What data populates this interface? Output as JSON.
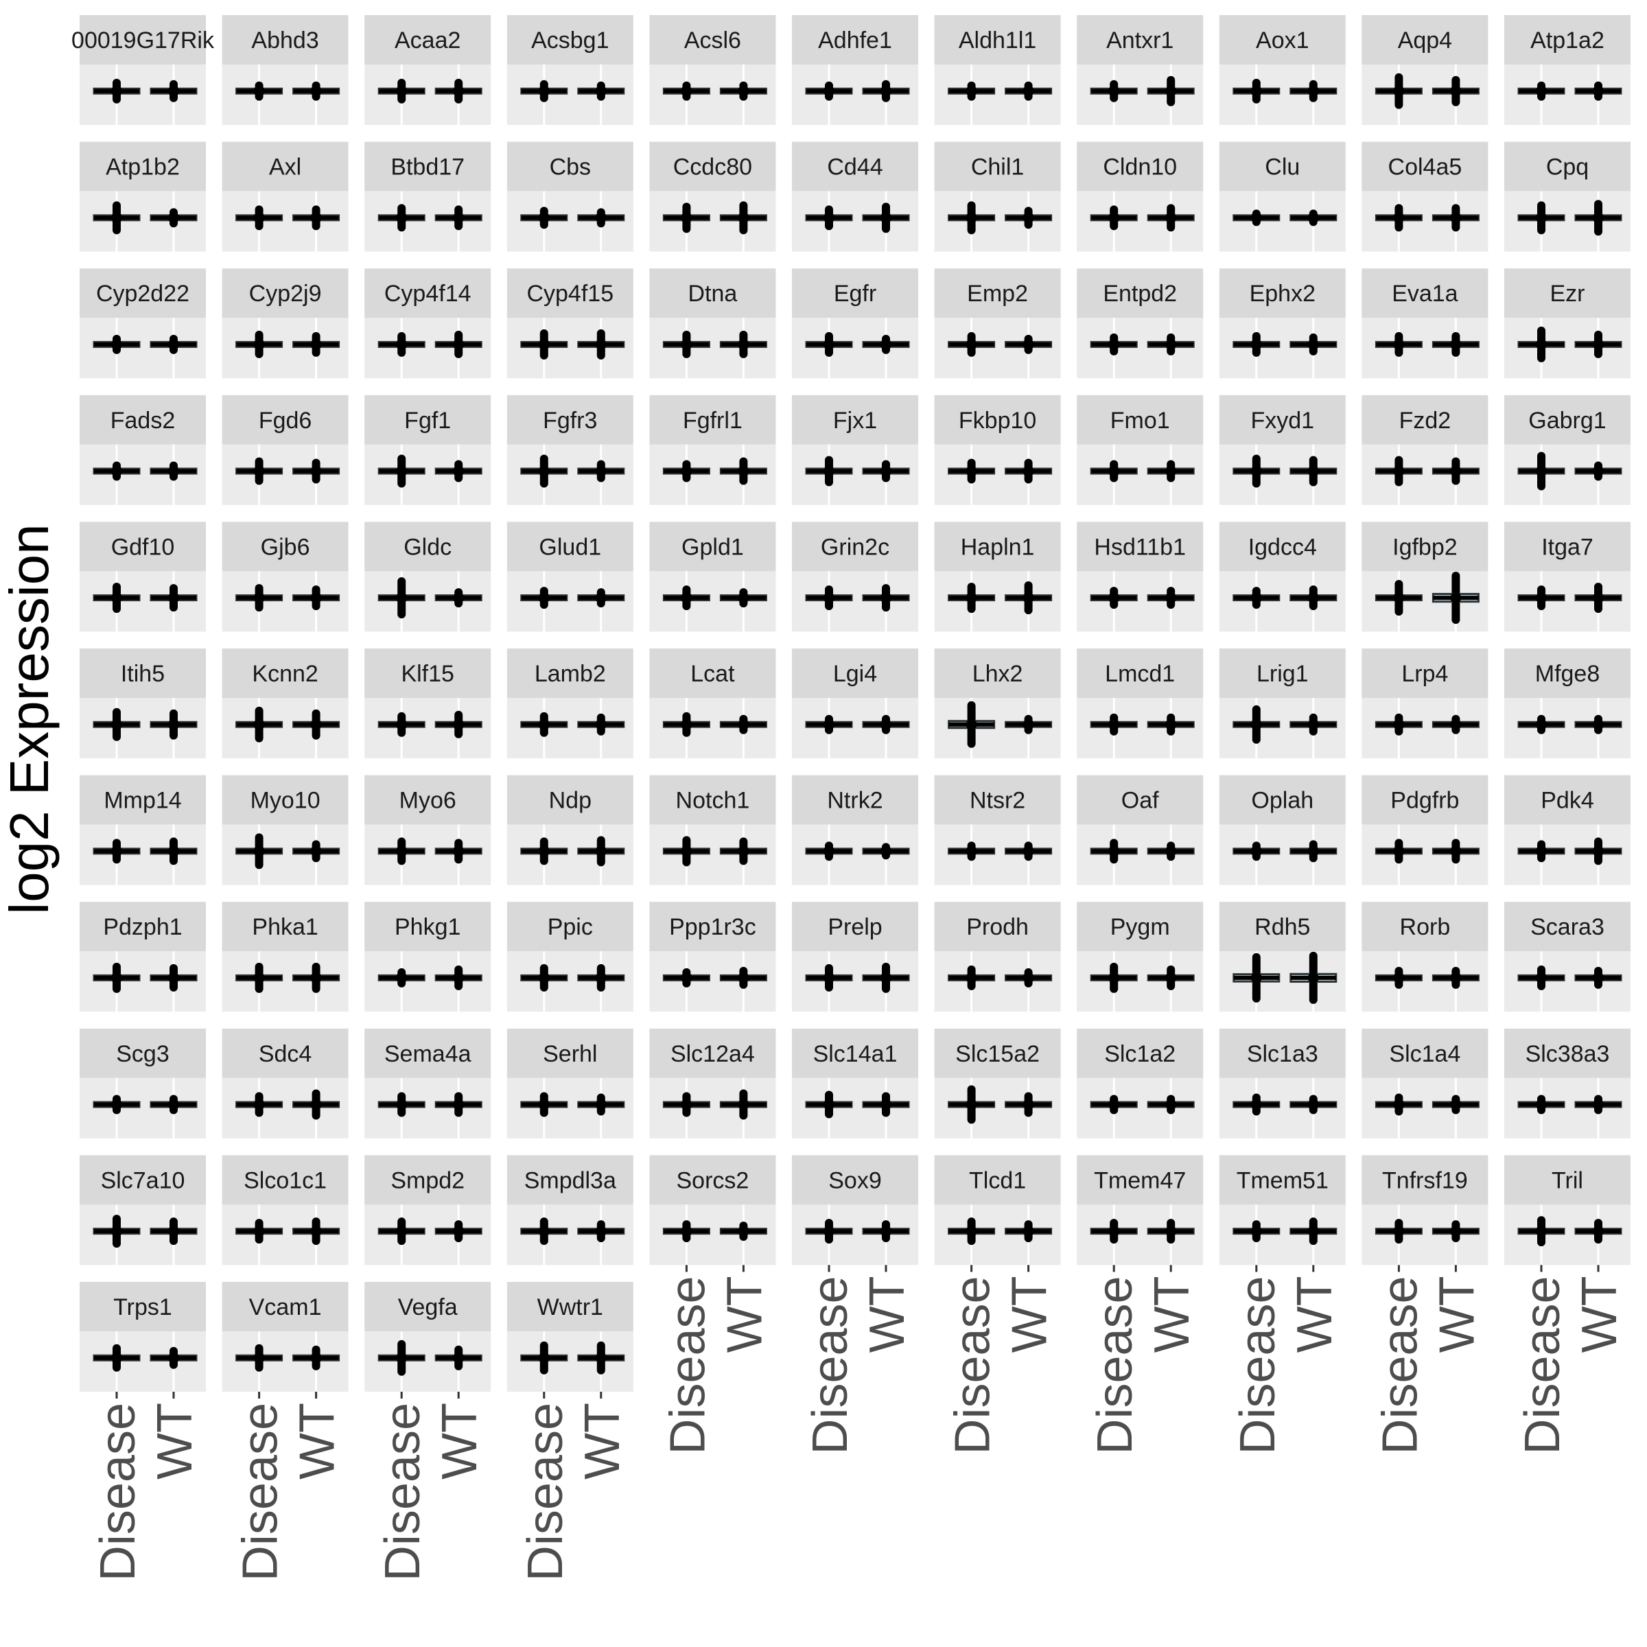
{
  "chart_data": {
    "type": "box",
    "ylabel": "log2 Expression",
    "x_categories": [
      "Disease",
      "WT"
    ],
    "facet_columns": 11,
    "facets": [
      "00019G17Rik",
      "Abhd3",
      "Acaa2",
      "Acsbg1",
      "Acsl6",
      "Adhfe1",
      "Aldh1l1",
      "Antxr1",
      "Aox1",
      "Aqp4",
      "Atp1a2",
      "Atp1b2",
      "Axl",
      "Btbd17",
      "Cbs",
      "Ccdc80",
      "Cd44",
      "Chil1",
      "Cldn10",
      "Clu",
      "Col4a5",
      "Cpq",
      "Cyp2d22",
      "Cyp2j9",
      "Cyp4f14",
      "Cyp4f15",
      "Dtna",
      "Egfr",
      "Emp2",
      "Entpd2",
      "Ephx2",
      "Eva1a",
      "Ezr",
      "Fads2",
      "Fgd6",
      "Fgf1",
      "Fgfr3",
      "Fgfrl1",
      "Fjx1",
      "Fkbp10",
      "Fmo1",
      "Fxyd1",
      "Fzd2",
      "Gabrg1",
      "Gdf10",
      "Gjb6",
      "Gldc",
      "Glud1",
      "Gpld1",
      "Grin2c",
      "Hapln1",
      "Hsd11b1",
      "Igdcc4",
      "Igfbp2",
      "Itga7",
      "Itih5",
      "Kcnn2",
      "Klf15",
      "Lamb2",
      "Lcat",
      "Lgi4",
      "Lhx2",
      "Lmcd1",
      "Lrig1",
      "Lrp4",
      "Mfge8",
      "Mmp14",
      "Myo10",
      "Myo6",
      "Ndp",
      "Notch1",
      "Ntrk2",
      "Ntsr2",
      "Oaf",
      "Oplah",
      "Pdgfrb",
      "Pdk4",
      "Pdzph1",
      "Phka1",
      "Phkg1",
      "Ppic",
      "Ppp1r3c",
      "Prelp",
      "Prodh",
      "Pygm",
      "Rdh5",
      "Rorb",
      "Scara3",
      "Scg3",
      "Sdc4",
      "Sema4a",
      "Serhl",
      "Slc12a4",
      "Slc14a1",
      "Slc15a2",
      "Slc1a2",
      "Slc1a3",
      "Slc1a4",
      "Slc38a3",
      "Slc7a10",
      "Slco1c1",
      "Smpd2",
      "Smpdl3a",
      "Sorcs2",
      "Sox9",
      "Tlcd1",
      "Tmem47",
      "Tmem51",
      "Tnfrsf19",
      "Tril",
      "Trps1",
      "Vcam1",
      "Vegfa",
      "Wwtr1"
    ],
    "spread": {
      "00019G17Rik": [
        0.6,
        0.5
      ],
      "Abhd3": [
        0.4,
        0.4
      ],
      "Acaa2": [
        0.6,
        0.6
      ],
      "Acsbg1": [
        0.5,
        0.4
      ],
      "Acsl6": [
        0.4,
        0.4
      ],
      "Adhfe1": [
        0.4,
        0.5
      ],
      "Aldh1l1": [
        0.4,
        0.4
      ],
      "Antxr1": [
        0.5,
        0.8
      ],
      "Aox1": [
        0.6,
        0.5
      ],
      "Aqp4": [
        1.0,
        0.8
      ],
      "Atp1a2": [
        0.4,
        0.4
      ],
      "Atp1b2": [
        0.9,
        0.4
      ],
      "Axl": [
        0.6,
        0.6
      ],
      "Btbd17": [
        0.7,
        0.6
      ],
      "Cbs": [
        0.5,
        0.4
      ],
      "Ccdc80": [
        0.8,
        0.9
      ],
      "Cd44": [
        0.6,
        0.8
      ],
      "Chil1": [
        0.9,
        0.5
      ],
      "Cldn10": [
        0.6,
        0.7
      ],
      "Clu": [
        0.3,
        0.3
      ],
      "Col4a5": [
        0.7,
        0.7
      ],
      "Cpq": [
        0.9,
        1.0
      ],
      "Cyp2d22": [
        0.4,
        0.4
      ],
      "Cyp2j9": [
        0.7,
        0.6
      ],
      "Cyp4f14": [
        0.6,
        0.7
      ],
      "Cyp4f15": [
        0.8,
        0.8
      ],
      "Dtna": [
        0.7,
        0.7
      ],
      "Egfr": [
        0.6,
        0.4
      ],
      "Emp2": [
        0.6,
        0.4
      ],
      "Entpd2": [
        0.5,
        0.5
      ],
      "Ephx2": [
        0.6,
        0.5
      ],
      "Eva1a": [
        0.6,
        0.6
      ],
      "Ezr": [
        1.0,
        0.7
      ],
      "Fads2": [
        0.4,
        0.4
      ],
      "Fgd6": [
        0.7,
        0.6
      ],
      "Fgf1": [
        0.9,
        0.5
      ],
      "Fgfr3": [
        0.9,
        0.5
      ],
      "Fgfrl1": [
        0.5,
        0.7
      ],
      "Fjx1": [
        0.8,
        0.5
      ],
      "Fkbp10": [
        0.6,
        0.6
      ],
      "Fmo1": [
        0.5,
        0.5
      ],
      "Fxyd1": [
        0.9,
        0.8
      ],
      "Fzd2": [
        0.8,
        0.7
      ],
      "Gabrg1": [
        1.1,
        0.4
      ],
      "Gdf10": [
        0.8,
        0.7
      ],
      "Gjb6": [
        0.7,
        0.6
      ],
      "Gldc": [
        1.2,
        0.4
      ],
      "Glud1": [
        0.5,
        0.4
      ],
      "Gpld1": [
        0.6,
        0.4
      ],
      "Grin2c": [
        0.6,
        0.7
      ],
      "Hapln1": [
        0.8,
        0.9
      ],
      "Hsd11b1": [
        0.5,
        0.5
      ],
      "Igdcc4": [
        0.5,
        0.6
      ],
      "Igfbp2": [
        1.0,
        1.6
      ],
      "Itga7": [
        0.6,
        0.8
      ],
      "Itih5": [
        0.9,
        0.8
      ],
      "Kcnn2": [
        1.0,
        0.8
      ],
      "Klf15": [
        0.6,
        0.7
      ],
      "Lamb2": [
        0.6,
        0.5
      ],
      "Lcat": [
        0.6,
        0.4
      ],
      "Lgi4": [
        0.4,
        0.4
      ],
      "Lhx2": [
        1.4,
        0.4
      ],
      "Lmcd1": [
        0.5,
        0.5
      ],
      "Lrig1": [
        1.1,
        0.5
      ],
      "Lrp4": [
        0.5,
        0.4
      ],
      "Mfge8": [
        0.4,
        0.4
      ],
      "Mmp14": [
        0.6,
        0.7
      ],
      "Myo10": [
        1.0,
        0.5
      ],
      "Myo6": [
        0.7,
        0.6
      ],
      "Ndp": [
        0.7,
        0.8
      ],
      "Notch1": [
        0.8,
        0.7
      ],
      "Ntrk2": [
        0.4,
        0.3
      ],
      "Ntsr2": [
        0.4,
        0.4
      ],
      "Oaf": [
        0.6,
        0.4
      ],
      "Oplah": [
        0.4,
        0.5
      ],
      "Pdgfrb": [
        0.6,
        0.6
      ],
      "Pdk4": [
        0.5,
        0.7
      ],
      "Pdzph1": [
        0.8,
        0.7
      ],
      "Phka1": [
        0.8,
        0.8
      ],
      "Phkg1": [
        0.4,
        0.6
      ],
      "Ppic": [
        0.7,
        0.7
      ],
      "Ppp1r3c": [
        0.4,
        0.5
      ],
      "Prelp": [
        0.7,
        0.8
      ],
      "Prodh": [
        0.6,
        0.4
      ],
      "Pygm": [
        0.8,
        0.6
      ],
      "Rdh5": [
        1.5,
        1.6
      ],
      "Rorb": [
        0.5,
        0.5
      ],
      "Scara3": [
        0.6,
        0.5
      ],
      "Scg3": [
        0.4,
        0.4
      ],
      "Sdc4": [
        0.6,
        0.8
      ],
      "Sema4a": [
        0.6,
        0.6
      ],
      "Serhl": [
        0.6,
        0.5
      ],
      "Slc12a4": [
        0.6,
        0.8
      ],
      "Slc14a1": [
        0.7,
        0.6
      ],
      "Slc15a2": [
        1.1,
        0.6
      ],
      "Slc1a2": [
        0.4,
        0.4
      ],
      "Slc1a3": [
        0.5,
        0.4
      ],
      "Slc1a4": [
        0.5,
        0.4
      ],
      "Slc38a3": [
        0.4,
        0.4
      ],
      "Slc7a10": [
        0.9,
        0.7
      ],
      "Slco1c1": [
        0.6,
        0.7
      ],
      "Smpd2": [
        0.7,
        0.5
      ],
      "Smpdl3a": [
        0.7,
        0.5
      ],
      "Sorcs2": [
        0.5,
        0.4
      ],
      "Sox9": [
        0.6,
        0.5
      ],
      "Tlcd1": [
        0.7,
        0.5
      ],
      "Tmem47": [
        0.6,
        0.6
      ],
      "Tmem51": [
        0.5,
        0.7
      ],
      "Tnfrsf19": [
        0.6,
        0.5
      ],
      "Tril": [
        0.8,
        0.6
      ],
      "Trps1": [
        0.7,
        0.5
      ],
      "Vcam1": [
        0.7,
        0.6
      ],
      "Vegfa": [
        1.0,
        0.6
      ],
      "Wwtr1": [
        0.9,
        0.9
      ]
    },
    "box_fill": "#add8e6",
    "strip_bg": "#d9d9d9",
    "panel_bg": "#ebebeb",
    "grid_color": "#ffffff",
    "mark_color": "#000000"
  }
}
